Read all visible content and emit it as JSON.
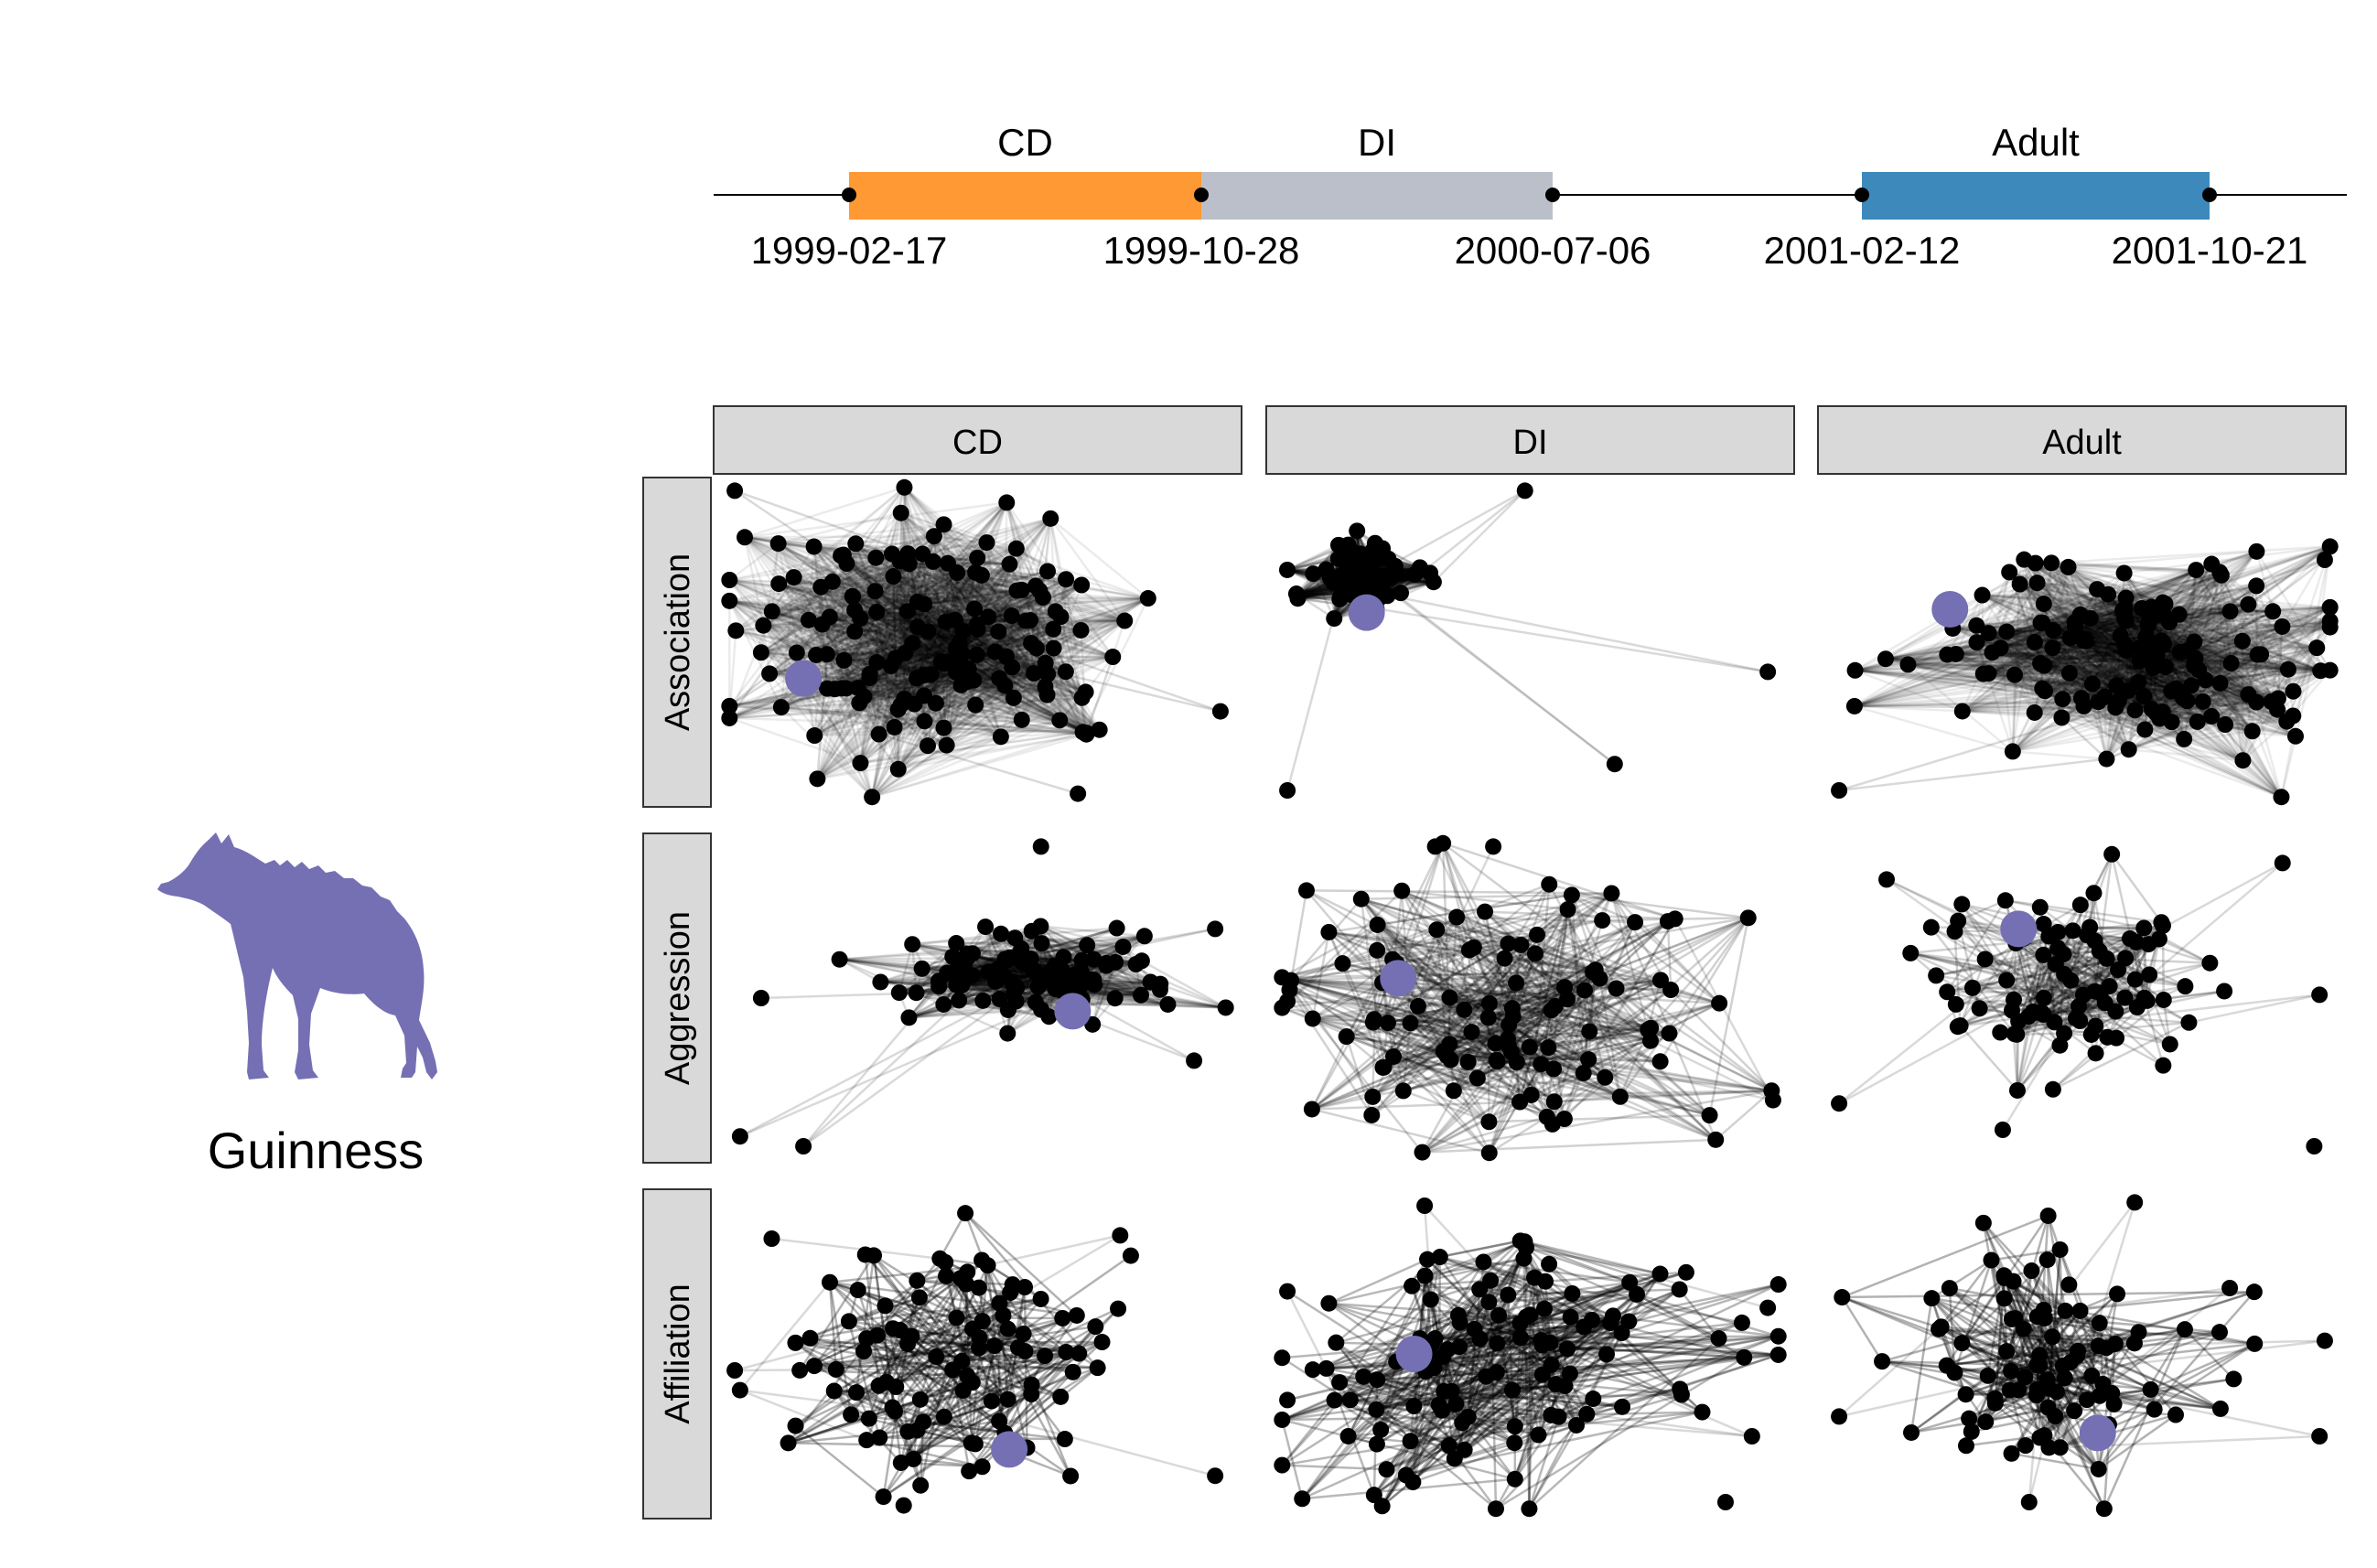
{
  "individual": {
    "name": "Guinness",
    "icon": "hyena-silhouette-icon",
    "color": "#7570B3"
  },
  "timeline": {
    "stages": [
      {
        "label": "CD",
        "start": "1999-02-17",
        "end": "1999-10-28",
        "color": "#FF9933"
      },
      {
        "label": "DI",
        "start": "1999-10-28",
        "end": "2000-07-06",
        "color": "#BBBFC9"
      },
      {
        "label": "Adult",
        "start": "2001-02-12",
        "end": "2001-10-21",
        "color": "#3D89BB"
      }
    ],
    "dates": [
      "1999-02-17",
      "1999-10-28",
      "2000-07-06",
      "2001-02-12",
      "2001-10-21"
    ]
  },
  "grid": {
    "columns": [
      "CD",
      "DI",
      "Adult"
    ],
    "rows": [
      "Association",
      "Aggression",
      "Affiliation"
    ],
    "strip_color": "#D9D9D9",
    "node_color": "#000000",
    "focal_color": "#7570B3"
  }
}
